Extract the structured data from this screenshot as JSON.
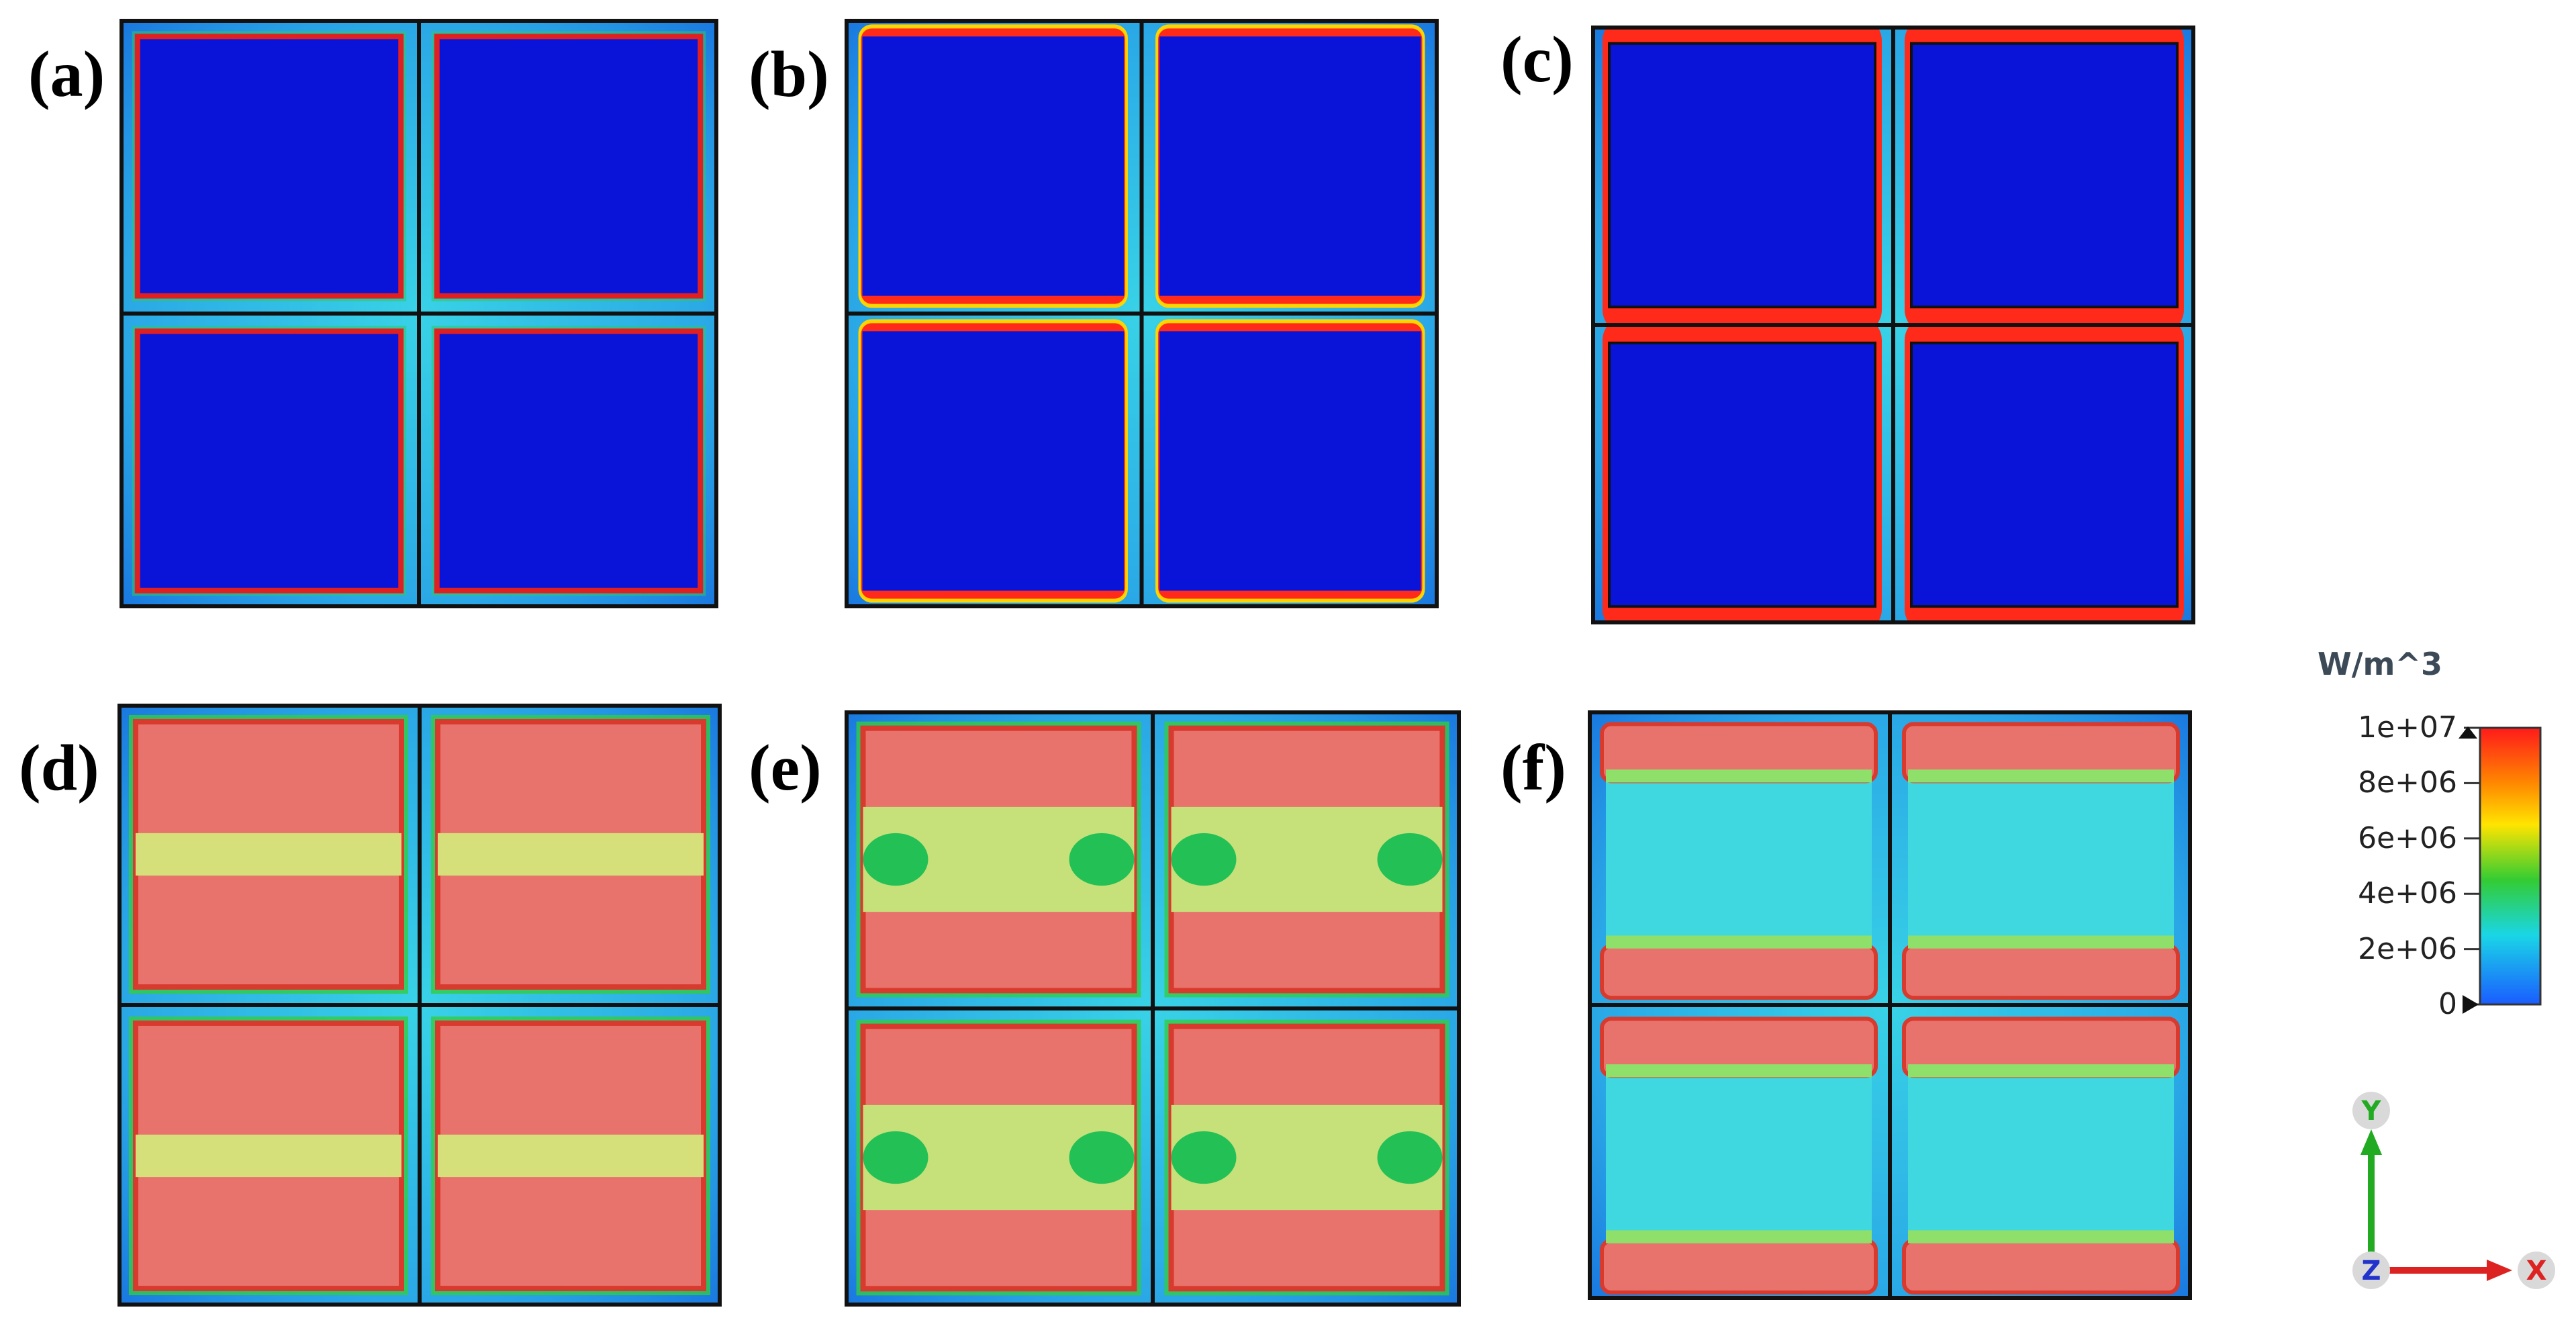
{
  "panels": [
    {
      "label": "(a)",
      "pattern": "blue-cells-edge-hotspots"
    },
    {
      "label": "(b)",
      "pattern": "blue-cells-red-horizontal-edges"
    },
    {
      "label": "(c)",
      "pattern": "blue-cells-thick-red-horizontal-edges"
    },
    {
      "label": "(d)",
      "pattern": "salmon-cells-yellow-center-band"
    },
    {
      "label": "(e)",
      "pattern": "salmon-cells-green-center-band"
    },
    {
      "label": "(f)",
      "pattern": "cyan-cells-salmon-top-bottom"
    }
  ],
  "legend": {
    "title": "W/m^3",
    "ticks": [
      "1e+07",
      "8e+06",
      "6e+06",
      "4e+06",
      "2e+06",
      "0"
    ],
    "min": 0,
    "max": 10000000,
    "colors": [
      "#ff1a1a",
      "#ff8800",
      "#ffe400",
      "#33cc33",
      "#1ad6e6",
      "#1a5cff"
    ]
  },
  "axes": {
    "y_label": "Y",
    "x_label": "X",
    "z_label": "Z",
    "y_color": "#22aa22",
    "x_color": "#dd2222",
    "z_color": "#2233cc"
  }
}
